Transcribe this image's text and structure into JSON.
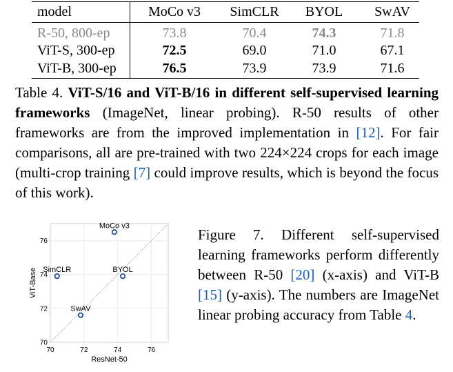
{
  "table": {
    "headers": [
      "model",
      "MoCo v3",
      "SimCLR",
      "BYOL",
      "SwAV"
    ],
    "rows": [
      {
        "label": "R-50, 800-ep",
        "values": [
          "73.8",
          "70.4",
          "74.3",
          "71.8"
        ],
        "muted": true,
        "bold_index": 2
      },
      {
        "label": "ViT-S, 300-ep",
        "values": [
          "72.5",
          "69.0",
          "71.0",
          "67.1"
        ],
        "muted": false,
        "bold_index": 0
      },
      {
        "label": "ViT-B, 300-ep",
        "values": [
          "76.5",
          "73.9",
          "73.9",
          "71.6"
        ],
        "muted": false,
        "bold_index": 0
      }
    ]
  },
  "table_caption": {
    "label": "Table 4.",
    "bold_title": "ViT-S/16 and ViT-B/16 in different self-supervised learning frameworks",
    "text_1": " (ImageNet, linear probing).  R-50 results of other frameworks are from the improved implementation in ",
    "ref_1": "[12]",
    "text_2": ". For fair comparisons, all are pre-trained with two 224×224 crops for each image (multi-crop training ",
    "ref_2": "[7]",
    "text_3": " could improve results, which is beyond the focus of this work)."
  },
  "figure_caption": {
    "label": "Figure 7.",
    "text_1": "  Different self-supervised learning frameworks perform differently between R-50 ",
    "ref_1": "[20]",
    "text_2": " (x-axis) and ViT-B ",
    "ref_2": "[15]",
    "text_3": " (y-axis).  The numbers are ImageNet linear probing accuracy from Table ",
    "ref_3": "4",
    "text_4": "."
  },
  "chart_data": {
    "type": "scatter",
    "xlabel": "ResNet-50",
    "ylabel": "ViT-Base",
    "xlim": [
      70,
      77
    ],
    "ylim": [
      70,
      77
    ],
    "xticks": [
      70,
      72,
      74,
      76
    ],
    "yticks": [
      70,
      72,
      74,
      76
    ],
    "grid": true,
    "diagonal": true,
    "marker_color": "#1f4e9c",
    "points": [
      {
        "label": "MoCo v3",
        "x": 73.8,
        "y": 76.5
      },
      {
        "label": "SimCLR",
        "x": 70.4,
        "y": 73.9
      },
      {
        "label": "BYOL",
        "x": 74.3,
        "y": 73.9
      },
      {
        "label": "SwAV",
        "x": 71.8,
        "y": 71.6
      }
    ]
  }
}
